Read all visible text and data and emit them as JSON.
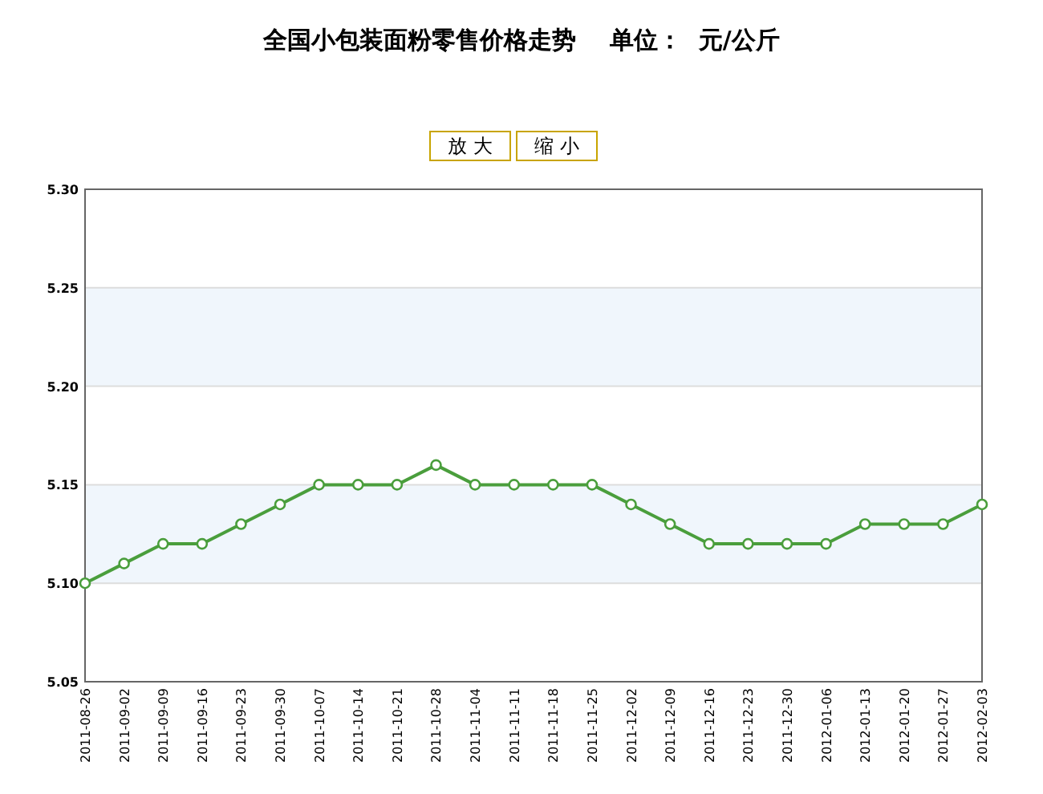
{
  "chart_data": {
    "type": "line",
    "title": "全国小包装面粉零售价格走势    单位：  元/公斤",
    "annotations": [
      "放 大",
      "缩 小"
    ],
    "categories": [
      "2011-08-26",
      "2011-09-02",
      "2011-09-09",
      "2011-09-16",
      "2011-09-23",
      "2011-09-30",
      "2011-10-07",
      "2011-10-14",
      "2011-10-21",
      "2011-10-28",
      "2011-11-04",
      "2011-11-11",
      "2011-11-18",
      "2011-11-25",
      "2011-12-02",
      "2011-12-09",
      "2011-12-16",
      "2011-12-23",
      "2011-12-30",
      "2012-01-06",
      "2012-01-13",
      "2012-01-20",
      "2012-01-27",
      "2012-02-03"
    ],
    "series": [
      {
        "color": "#4a9e3c",
        "values": [
          5.1,
          5.11,
          5.12,
          5.12,
          5.13,
          5.14,
          5.15,
          5.15,
          5.15,
          5.16,
          5.15,
          5.15,
          5.15,
          5.15,
          5.14,
          5.13,
          5.12,
          5.12,
          5.12,
          5.12,
          5.13,
          5.13,
          5.13,
          5.14
        ]
      }
    ],
    "ylim": [
      5.05,
      5.3
    ],
    "yticks": [
      {
        "value": 5.05,
        "label": "5.05"
      },
      {
        "value": 5.1,
        "label": "5.10"
      },
      {
        "value": 5.15,
        "label": "5.15"
      },
      {
        "value": 5.2,
        "label": "5.20"
      },
      {
        "value": 5.25,
        "label": "5.25"
      },
      {
        "value": 5.3,
        "label": "5.30"
      }
    ],
    "bands": [
      {
        "axis": "y",
        "from": 5.1,
        "to": 5.15,
        "color": "#f0f6fc"
      },
      {
        "axis": "y",
        "from": 5.2,
        "to": 5.25,
        "color": "#f0f6fc"
      }
    ],
    "grid": "y",
    "marker": "circle",
    "line_style": "solid"
  }
}
